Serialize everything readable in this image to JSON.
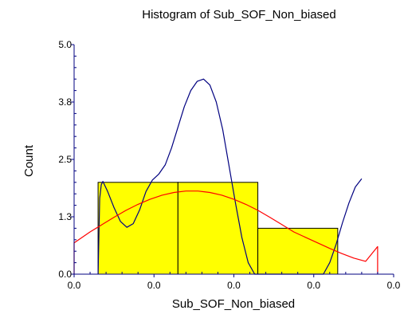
{
  "chart_data": {
    "type": "bar",
    "title": "Histogram of Sub_SOF_Non_biased",
    "xlabel": "Sub_SOF_Non_biased",
    "ylabel": "Count",
    "xlim": [
      0,
      4
    ],
    "ylim": [
      0,
      5.0
    ],
    "x_tick_labels": [
      "0.0",
      "0.0",
      "0.0",
      "0.0",
      "0.0"
    ],
    "y_tick_labels": [
      "0.0",
      "1.3",
      "2.5",
      "3.8",
      "5.0"
    ],
    "y_tick_values": [
      0,
      1.25,
      2.5,
      3.75,
      5.0
    ],
    "bins": [
      {
        "start": 0.3,
        "end": 1.3,
        "count": 2
      },
      {
        "start": 1.3,
        "end": 2.3,
        "count": 2
      },
      {
        "start": 2.3,
        "end": 3.3,
        "count": 1
      }
    ],
    "series": [
      {
        "type": "line",
        "style": "density",
        "color": "#000080",
        "points": [
          [
            0.3,
            0.0
          ],
          [
            0.32,
            1.65
          ],
          [
            0.34,
            1.95
          ],
          [
            0.36,
            2.02
          ],
          [
            0.42,
            1.8
          ],
          [
            0.5,
            1.45
          ],
          [
            0.58,
            1.15
          ],
          [
            0.66,
            1.02
          ],
          [
            0.74,
            1.1
          ],
          [
            0.82,
            1.4
          ],
          [
            0.9,
            1.8
          ],
          [
            0.98,
            2.05
          ],
          [
            1.06,
            2.18
          ],
          [
            1.14,
            2.38
          ],
          [
            1.22,
            2.75
          ],
          [
            1.3,
            3.2
          ],
          [
            1.38,
            3.65
          ],
          [
            1.46,
            4.0
          ],
          [
            1.54,
            4.2
          ],
          [
            1.62,
            4.25
          ],
          [
            1.7,
            4.12
          ],
          [
            1.78,
            3.75
          ],
          [
            1.86,
            3.15
          ],
          [
            1.94,
            2.35
          ],
          [
            2.02,
            1.55
          ],
          [
            2.1,
            0.8
          ],
          [
            2.18,
            0.25
          ],
          [
            2.26,
            0.0
          ],
          [
            2.34,
            0.0
          ],
          [
            2.42,
            0.0
          ],
          [
            2.5,
            0.0
          ],
          [
            2.58,
            0.0
          ],
          [
            2.66,
            0.0
          ],
          [
            2.74,
            0.0
          ],
          [
            2.82,
            0.0
          ],
          [
            2.9,
            0.0
          ],
          [
            2.98,
            0.0
          ],
          [
            3.06,
            0.0
          ],
          [
            3.12,
            0.0
          ],
          [
            3.2,
            0.25
          ],
          [
            3.28,
            0.65
          ],
          [
            3.36,
            1.12
          ],
          [
            3.44,
            1.55
          ],
          [
            3.52,
            1.9
          ],
          [
            3.6,
            2.08
          ]
        ]
      },
      {
        "type": "line",
        "style": "normal",
        "color": "#ff0000",
        "points": [
          [
            0.0,
            0.0
          ],
          [
            0.0,
            0.68
          ],
          [
            0.1,
            0.8
          ],
          [
            0.2,
            0.92
          ],
          [
            0.35,
            1.08
          ],
          [
            0.5,
            1.24
          ],
          [
            0.65,
            1.39
          ],
          [
            0.8,
            1.52
          ],
          [
            0.95,
            1.63
          ],
          [
            1.1,
            1.72
          ],
          [
            1.25,
            1.78
          ],
          [
            1.4,
            1.81
          ],
          [
            1.55,
            1.81
          ],
          [
            1.7,
            1.78
          ],
          [
            1.85,
            1.72
          ],
          [
            2.0,
            1.63
          ],
          [
            2.15,
            1.52
          ],
          [
            2.3,
            1.39
          ],
          [
            2.45,
            1.24
          ],
          [
            2.6,
            1.08
          ],
          [
            2.75,
            0.92
          ],
          [
            2.9,
            0.8
          ],
          [
            3.05,
            0.68
          ],
          [
            3.2,
            0.56
          ],
          [
            3.35,
            0.45
          ],
          [
            3.5,
            0.35
          ],
          [
            3.65,
            0.28
          ],
          [
            3.8,
            0.6
          ],
          [
            3.8,
            0.0
          ]
        ]
      }
    ]
  },
  "colors": {
    "bar_fill": "#ffff00",
    "bar_stroke": "#000000",
    "axis": "#000080"
  }
}
